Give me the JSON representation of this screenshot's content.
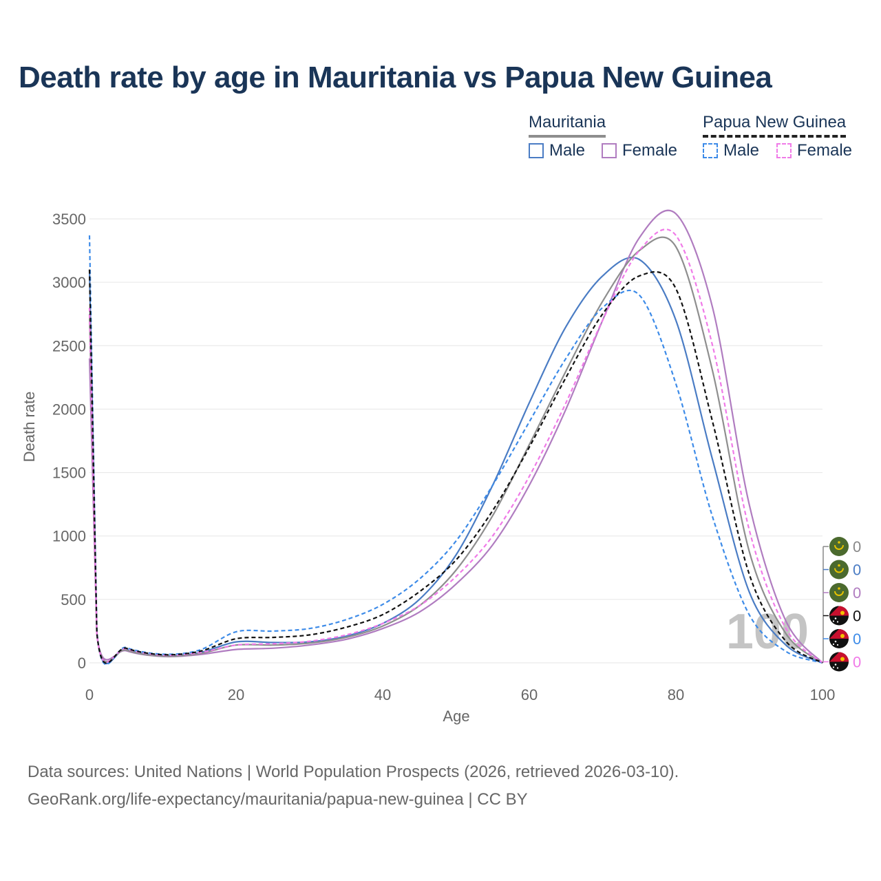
{
  "title": "Death rate by age in Mauritania vs Papua New Guinea",
  "legend": {
    "mauritania": {
      "label": "Mauritania",
      "male": "Male",
      "female": "Female"
    },
    "png": {
      "label": "Papua New Guinea",
      "male": "Male",
      "female": "Female"
    }
  },
  "footer": {
    "line1": "Data sources: United Nations | World Population Prospects (2026, retrieved 2026-03-10).",
    "line2": "GeoRank.org/life-expectancy/mauritania/papua-new-guinea | CC BY"
  },
  "overlay_year": "100",
  "end_labels": [
    {
      "value": "0",
      "color": "#888888",
      "flag": "mauritania"
    },
    {
      "value": "0",
      "color": "#4a7cc4",
      "flag": "mauritania"
    },
    {
      "value": "0",
      "color": "#b07cc0",
      "flag": "mauritania"
    },
    {
      "value": "0",
      "color": "#111111",
      "flag": "papua-new-guinea"
    },
    {
      "value": "0",
      "color": "#3d8be8",
      "flag": "papua-new-guinea"
    },
    {
      "value": "0",
      "color": "#f07ae8",
      "flag": "papua-new-guinea"
    }
  ],
  "chart_data": {
    "type": "line",
    "title": "Death rate by age in Mauritania vs Papua New Guinea",
    "xlabel": "Age",
    "ylabel": "Death rate",
    "xlim": [
      0,
      100
    ],
    "ylim": [
      0,
      3500
    ],
    "xticks": [
      0,
      20,
      40,
      60,
      80,
      100
    ],
    "yticks": [
      0,
      500,
      1000,
      1500,
      2000,
      2500,
      3000,
      3500
    ],
    "grid": true,
    "x": [
      0,
      1,
      5,
      10,
      15,
      20,
      25,
      30,
      35,
      40,
      45,
      50,
      55,
      60,
      65,
      70,
      75,
      80,
      85,
      90,
      95,
      100
    ],
    "series": [
      {
        "name": "Male",
        "country": "Mauritania",
        "color": "#4a7cc4",
        "dash": false,
        "values": [
          3100,
          240,
          105,
          55,
          80,
          165,
          160,
          165,
          210,
          310,
          500,
          850,
          1400,
          2050,
          2650,
          3050,
          3180,
          2700,
          1600,
          560,
          140,
          0
        ]
      },
      {
        "name": "Female",
        "country": "Mauritania",
        "color": "#b07cc0",
        "dash": false,
        "values": [
          2400,
          220,
          95,
          50,
          65,
          105,
          115,
          140,
          185,
          270,
          400,
          620,
          930,
          1400,
          2000,
          2700,
          3350,
          3540,
          2800,
          1250,
          330,
          0
        ]
      },
      {
        "name": "",
        "country": "Mauritania (total)",
        "color": "#8e8e8e",
        "dash": false,
        "values": [
          2750,
          230,
          100,
          52,
          72,
          140,
          140,
          155,
          200,
          290,
          450,
          730,
          1160,
          1720,
          2300,
          2850,
          3250,
          3280,
          2300,
          880,
          230,
          0
        ]
      },
      {
        "name": "Male",
        "country": "Papua New Guinea",
        "color": "#3d8be8",
        "dash": true,
        "values": [
          3370,
          250,
          120,
          68,
          100,
          245,
          250,
          270,
          340,
          460,
          660,
          960,
          1400,
          1900,
          2400,
          2800,
          2900,
          2200,
          1150,
          380,
          90,
          0
        ]
      },
      {
        "name": "Female",
        "country": "Papua New Guinea",
        "color": "#f07ae8",
        "dash": true,
        "values": [
          2800,
          225,
          110,
          60,
          80,
          140,
          150,
          170,
          220,
          310,
          450,
          680,
          1000,
          1470,
          2050,
          2700,
          3250,
          3370,
          2500,
          1050,
          270,
          0
        ]
      },
      {
        "name": "",
        "country": "Papua New Guinea (total)",
        "color": "#111111",
        "dash": true,
        "values": [
          3100,
          240,
          115,
          64,
          90,
          190,
          200,
          220,
          280,
          380,
          560,
          810,
          1200,
          1700,
          2250,
          2750,
          3050,
          2950,
          1900,
          700,
          170,
          0
        ]
      }
    ]
  }
}
